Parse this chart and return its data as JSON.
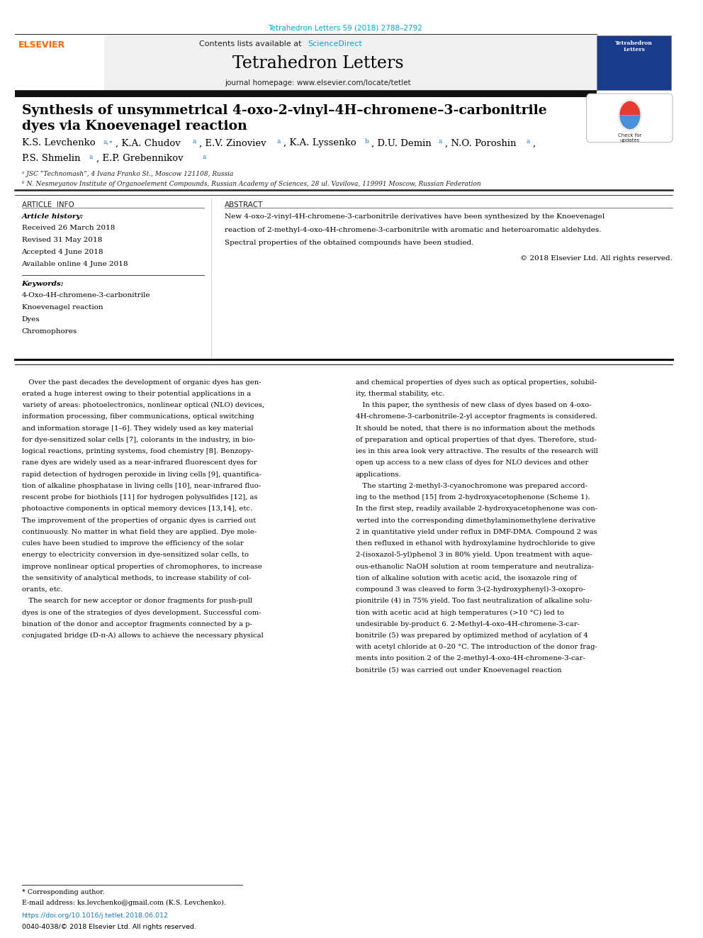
{
  "page_width": 9.92,
  "page_height": 13.23,
  "bg_color": "#ffffff",
  "top_citation": "Tetrahedron Letters 59 (2018) 2788–2792",
  "top_citation_color": "#00AACC",
  "journal_header_bg": "#f0f0f0",
  "journal_name": "Tetrahedron Letters",
  "journal_homepage": "journal homepage: www.elsevier.com/locate/tetlet",
  "title_line1": "Synthesis of unsymmetrical 4-oxo-2-vinyl–4H–chromene–3-carbonitrile",
  "title_line2": "dyes via Knoevenagel reaction",
  "affil_a": "ᵃ JSC “Technomash”, 4 Ivana Franko St., Moscow 121108, Russia",
  "affil_b": "ᵇ N. Nesmeyanov Institute of Organoelement Compounds, Russian Academy of Sciences, 28 ul. Vavilova, 119991 Moscow, Russian Federation",
  "article_info_title": "ARTICLE  INFO",
  "abstract_title": "ABSTRACT",
  "article_history_label": "Article history:",
  "received": "Received 26 March 2018",
  "revised": "Revised 31 May 2018",
  "accepted": "Accepted 4 June 2018",
  "available": "Available online 4 June 2018",
  "keywords_label": "Keywords:",
  "keyword1": "4-Oxo-4H-chromene-3-carbonitrile",
  "keyword2": "Knoevenagel reaction",
  "keyword3": "Dyes",
  "keyword4": "Chromophores",
  "copyright": "© 2018 Elsevier Ltd. All rights reserved.",
  "footnote_corresponding": "* Corresponding author.",
  "footnote_email": "E-mail address: ks.levchenko@gmail.com (K.S. Levchenko).",
  "doi": "https://doi.org/10.1016/j.tetlet.2018.06.012",
  "issn": "0040-4038/© 2018 Elsevier Ltd. All rights reserved.",
  "link_color": "#1a7bbf",
  "black": "#000000",
  "dark_gray": "#222222",
  "elsevier_orange": "#FF6600"
}
